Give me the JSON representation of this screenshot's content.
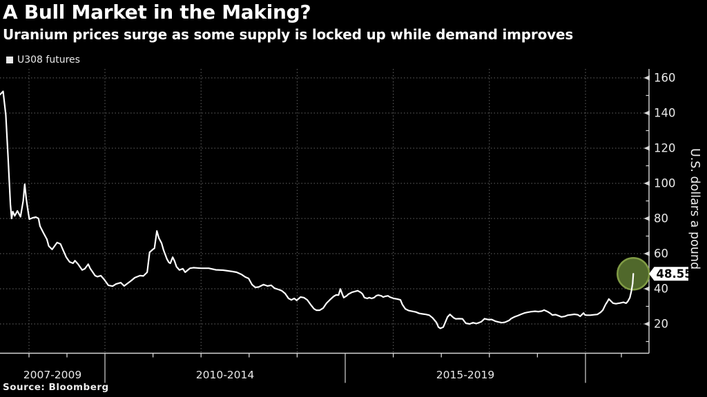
{
  "header": {
    "title": "A Bull Market in the Making?",
    "subtitle": "Uranium prices surge as some supply is locked up while demand improves"
  },
  "legend": {
    "label": "U308 futures"
  },
  "source": "Source: Bloomberg",
  "colors": {
    "background": "#000000",
    "line": "#ffffff",
    "grid": "#666666",
    "axis": "#d6d6d6",
    "tick_label": "#e8e8e8",
    "highlight_fill": "#50682b",
    "highlight_stroke": "#809b45",
    "callout_bg": "#ffffff",
    "callout_text": "#000000"
  },
  "chart_data": {
    "type": "line",
    "title": "A Bull Market in the Making?",
    "subtitle": "Uranium prices surge as some supply is locked up while demand improves",
    "grid": true,
    "legend_position": "top-left",
    "y_axis": {
      "title": "U.S. dollars a pound",
      "ticks": [
        20,
        40,
        60,
        80,
        100,
        120,
        140,
        160
      ],
      "minor_ticks": [
        10,
        30,
        50,
        70,
        90,
        110,
        130,
        150
      ],
      "range": [
        3.5,
        165
      ],
      "side": "right"
    },
    "x_axis": {
      "sections": [
        {
          "label": "2007-2009",
          "start": 2007.25,
          "end": 2010
        },
        {
          "label": "2010-2014",
          "start": 2010,
          "end": 2015
        },
        {
          "label": "2015-2019",
          "start": 2015,
          "end": 2020
        },
        {
          "label": "",
          "start": 2020,
          "end": 2021.75
        }
      ],
      "grid_years": [
        2008,
        2010,
        2012,
        2014,
        2016,
        2018,
        2020
      ],
      "minor_tick_years": [
        2008,
        2009,
        2011,
        2012,
        2013,
        2014,
        2016,
        2017,
        2018,
        2019,
        2021
      ],
      "divider_years": [
        2010,
        2015,
        2020
      ]
    },
    "callout": {
      "value": "48.55",
      "y": 48.55
    },
    "highlight": {
      "x": 2021.35,
      "y": 48.55,
      "radius": 23
    },
    "series": [
      {
        "name": "U308 futures",
        "color": "#ffffff",
        "points": [
          [
            2007.25,
            150.5
          ],
          [
            2007.33,
            152.3
          ],
          [
            2007.4,
            139
          ],
          [
            2007.46,
            114
          ],
          [
            2007.52,
            88
          ],
          [
            2007.55,
            80
          ],
          [
            2007.58,
            84
          ],
          [
            2007.63,
            81.5
          ],
          [
            2007.7,
            84.3
          ],
          [
            2007.78,
            81
          ],
          [
            2007.85,
            90
          ],
          [
            2007.89,
            99.5
          ],
          [
            2007.93,
            91
          ],
          [
            2007.97,
            85
          ],
          [
            2008.01,
            79.6
          ],
          [
            2008.1,
            80.4
          ],
          [
            2008.18,
            80.8
          ],
          [
            2008.25,
            80
          ],
          [
            2008.29,
            75.7
          ],
          [
            2008.38,
            71.8
          ],
          [
            2008.47,
            68.2
          ],
          [
            2008.52,
            64.3
          ],
          [
            2008.61,
            62.4
          ],
          [
            2008.74,
            66.3
          ],
          [
            2008.83,
            65.5
          ],
          [
            2008.89,
            62.4
          ],
          [
            2008.98,
            58
          ],
          [
            2009.07,
            55.3
          ],
          [
            2009.16,
            54.5
          ],
          [
            2009.21,
            56
          ],
          [
            2009.29,
            54.1
          ],
          [
            2009.4,
            50.7
          ],
          [
            2009.47,
            51.4
          ],
          [
            2009.56,
            54
          ],
          [
            2009.61,
            51.7
          ],
          [
            2009.74,
            47.5
          ],
          [
            2009.8,
            46.9
          ],
          [
            2009.89,
            47.5
          ],
          [
            2009.98,
            45.3
          ],
          [
            2010.07,
            42
          ],
          [
            2010.16,
            41.5
          ],
          [
            2010.23,
            42.7
          ],
          [
            2010.33,
            43.5
          ],
          [
            2010.4,
            41.6
          ],
          [
            2010.55,
            44.7
          ],
          [
            2010.62,
            46.3
          ],
          [
            2010.73,
            47.5
          ],
          [
            2010.8,
            47.3
          ],
          [
            2010.88,
            49.4
          ],
          [
            2010.93,
            60.8
          ],
          [
            2010.98,
            62
          ],
          [
            2011.03,
            63.1
          ],
          [
            2011.08,
            72.9
          ],
          [
            2011.12,
            69
          ],
          [
            2011.18,
            65.9
          ],
          [
            2011.22,
            62
          ],
          [
            2011.29,
            56.9
          ],
          [
            2011.33,
            55
          ],
          [
            2011.36,
            54.5
          ],
          [
            2011.41,
            58
          ],
          [
            2011.45,
            55.7
          ],
          [
            2011.49,
            52.5
          ],
          [
            2011.55,
            50.7
          ],
          [
            2011.62,
            51.4
          ],
          [
            2011.67,
            49.4
          ],
          [
            2011.74,
            51
          ],
          [
            2011.77,
            51.7
          ],
          [
            2011.84,
            52
          ],
          [
            2012.0,
            51.7
          ],
          [
            2012.16,
            51.7
          ],
          [
            2012.31,
            50.8
          ],
          [
            2012.46,
            50.6
          ],
          [
            2012.56,
            50.2
          ],
          [
            2012.66,
            49.8
          ],
          [
            2012.74,
            49.4
          ],
          [
            2012.84,
            48.2
          ],
          [
            2012.92,
            46.7
          ],
          [
            2012.99,
            45.9
          ],
          [
            2013.06,
            42.4
          ],
          [
            2013.13,
            40.8
          ],
          [
            2013.2,
            41
          ],
          [
            2013.3,
            42.4
          ],
          [
            2013.38,
            41.6
          ],
          [
            2013.46,
            42
          ],
          [
            2013.53,
            40.3
          ],
          [
            2013.61,
            39.6
          ],
          [
            2013.68,
            38.9
          ],
          [
            2013.75,
            37.3
          ],
          [
            2013.82,
            34.5
          ],
          [
            2013.88,
            33.7
          ],
          [
            2013.94,
            34.5
          ],
          [
            2013.99,
            33.4
          ],
          [
            2014.07,
            35.3
          ],
          [
            2014.14,
            35
          ],
          [
            2014.21,
            33.7
          ],
          [
            2014.28,
            31
          ],
          [
            2014.35,
            28.6
          ],
          [
            2014.4,
            27.8
          ],
          [
            2014.47,
            27.8
          ],
          [
            2014.54,
            29
          ],
          [
            2014.61,
            31.8
          ],
          [
            2014.68,
            33.7
          ],
          [
            2014.76,
            35.7
          ],
          [
            2014.81,
            36.5
          ],
          [
            2014.86,
            36.4
          ],
          [
            2014.9,
            39.9
          ],
          [
            2014.94,
            36.9
          ],
          [
            2014.97,
            35
          ],
          [
            2015.03,
            36
          ],
          [
            2015.07,
            37
          ],
          [
            2015.14,
            38
          ],
          [
            2015.22,
            38.6
          ],
          [
            2015.26,
            38.9
          ],
          [
            2015.32,
            38
          ],
          [
            2015.36,
            37
          ],
          [
            2015.4,
            35
          ],
          [
            2015.46,
            34.5
          ],
          [
            2015.5,
            35
          ],
          [
            2015.55,
            34.5
          ],
          [
            2015.6,
            35
          ],
          [
            2015.65,
            36.1
          ],
          [
            2015.69,
            36.4
          ],
          [
            2015.75,
            36
          ],
          [
            2015.79,
            35.3
          ],
          [
            2015.83,
            35.7
          ],
          [
            2015.89,
            36
          ],
          [
            2015.93,
            35.3
          ],
          [
            2016.01,
            34.5
          ],
          [
            2016.08,
            34.2
          ],
          [
            2016.15,
            33.7
          ],
          [
            2016.19,
            31
          ],
          [
            2016.25,
            28.6
          ],
          [
            2016.32,
            27.6
          ],
          [
            2016.39,
            27.2
          ],
          [
            2016.47,
            26.8
          ],
          [
            2016.54,
            26
          ],
          [
            2016.61,
            25.7
          ],
          [
            2016.68,
            25.4
          ],
          [
            2016.75,
            25
          ],
          [
            2016.82,
            23.4
          ],
          [
            2016.9,
            20.8
          ],
          [
            2016.94,
            18.2
          ],
          [
            2016.98,
            17.5
          ],
          [
            2017.04,
            18.2
          ],
          [
            2017.08,
            20.8
          ],
          [
            2017.13,
            24
          ],
          [
            2017.18,
            25.4
          ],
          [
            2017.26,
            23.4
          ],
          [
            2017.3,
            22.9
          ],
          [
            2017.37,
            23
          ],
          [
            2017.44,
            22.9
          ],
          [
            2017.51,
            20.4
          ],
          [
            2017.59,
            20
          ],
          [
            2017.66,
            20.7
          ],
          [
            2017.73,
            20.2
          ],
          [
            2017.83,
            21.2
          ],
          [
            2017.9,
            23
          ],
          [
            2017.97,
            22.5
          ],
          [
            2018.05,
            22.5
          ],
          [
            2018.12,
            21.6
          ],
          [
            2018.19,
            21.1
          ],
          [
            2018.26,
            20.7
          ],
          [
            2018.33,
            21
          ],
          [
            2018.41,
            22
          ],
          [
            2018.45,
            23
          ],
          [
            2018.52,
            24
          ],
          [
            2018.59,
            24.7
          ],
          [
            2018.66,
            25.5
          ],
          [
            2018.74,
            26.3
          ],
          [
            2018.81,
            26.7
          ],
          [
            2018.88,
            27
          ],
          [
            2018.95,
            27.2
          ],
          [
            2019.02,
            27
          ],
          [
            2019.09,
            27.3
          ],
          [
            2019.14,
            27.9
          ],
          [
            2019.21,
            27
          ],
          [
            2019.27,
            26
          ],
          [
            2019.31,
            25.1
          ],
          [
            2019.38,
            25.3
          ],
          [
            2019.43,
            24.8
          ],
          [
            2019.5,
            24
          ],
          [
            2019.57,
            24.3
          ],
          [
            2019.63,
            25
          ],
          [
            2019.7,
            25.2
          ],
          [
            2019.77,
            25.5
          ],
          [
            2019.84,
            25.2
          ],
          [
            2019.89,
            24.3
          ],
          [
            2019.93,
            25.4
          ],
          [
            2019.96,
            26.2
          ],
          [
            2019.99,
            25.1
          ],
          [
            2020.04,
            25
          ],
          [
            2020.13,
            25
          ],
          [
            2020.23,
            25.2
          ],
          [
            2020.33,
            25.4
          ],
          [
            2020.42,
            26.6
          ],
          [
            2020.48,
            27.8
          ],
          [
            2020.56,
            31.1
          ],
          [
            2020.62,
            33
          ],
          [
            2020.65,
            34.2
          ],
          [
            2020.71,
            33
          ],
          [
            2020.77,
            31.8
          ],
          [
            2020.85,
            31.5
          ],
          [
            2020.9,
            31.7
          ],
          [
            2020.96,
            31.9
          ],
          [
            2021.06,
            32.3
          ],
          [
            2021.14,
            31.8
          ],
          [
            2021.19,
            32.9
          ],
          [
            2021.25,
            35
          ],
          [
            2021.29,
            38.4
          ],
          [
            2021.33,
            42.9
          ],
          [
            2021.35,
            48.55
          ]
        ]
      }
    ]
  }
}
